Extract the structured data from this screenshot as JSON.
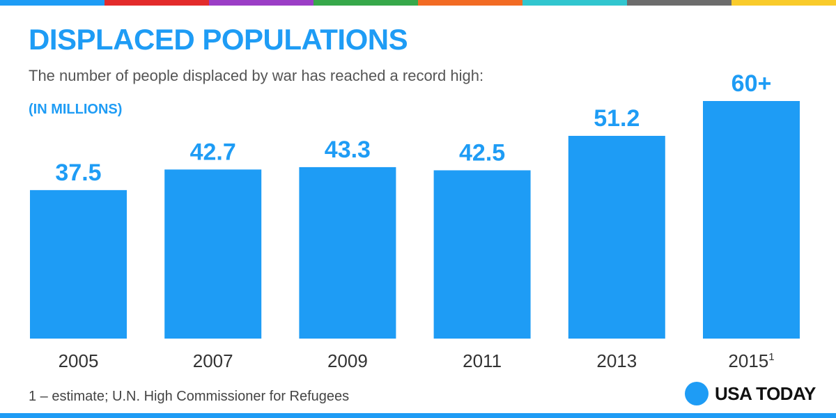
{
  "header": {
    "title": "DISPLACED POPULATIONS",
    "subtitle": "The number of people displaced by war has reached a record high:",
    "units": "(IN MILLIONS)"
  },
  "top_bar_colors": [
    "#1e9cf5",
    "#e32b2b",
    "#9b3ec6",
    "#37a84a",
    "#f26b24",
    "#31c6cf",
    "#6c6c6c",
    "#f9cb2b"
  ],
  "colors": {
    "accent": "#1e9cf5",
    "bar": "#1e9cf5",
    "tick_text": "#333333"
  },
  "chart_data": {
    "type": "bar",
    "title": "DISPLACED POPULATIONS",
    "subtitle": "The number of people displaced by war has reached a record high:",
    "ylabel": "(IN MILLIONS)",
    "xlabel": "",
    "categories": [
      "2005",
      "2007",
      "2009",
      "2011",
      "2013",
      "2015"
    ],
    "category_footnote_marks": [
      "",
      "",
      "",
      "",
      "",
      "1"
    ],
    "values": [
      37.5,
      42.7,
      43.3,
      42.5,
      51.2,
      60
    ],
    "value_labels": [
      "37.5",
      "42.7",
      "43.3",
      "42.5",
      "51.2",
      "60+"
    ],
    "ylim": [
      0,
      60
    ],
    "grid": false
  },
  "footnote": "1 – estimate; U.N. High Commissioner for Refugees",
  "logo": {
    "text": "USA TODAY",
    "icon": "usa-today-circle-logo"
  }
}
